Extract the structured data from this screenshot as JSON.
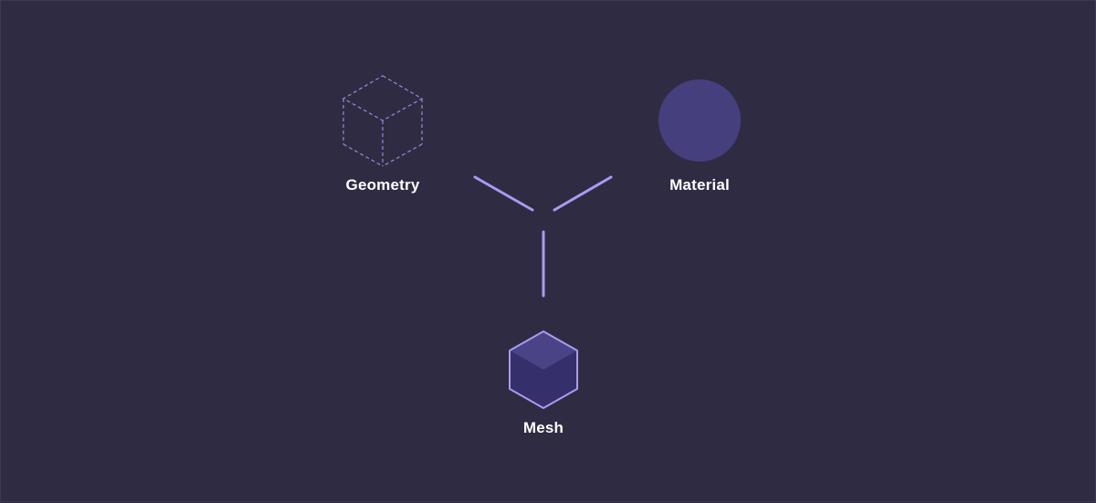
{
  "nodes": {
    "geometry": {
      "label": "Geometry"
    },
    "material": {
      "label": "Material"
    },
    "mesh": {
      "label": "Mesh"
    }
  },
  "colors": {
    "background": "#2f2b43",
    "accent": "#a89cf0",
    "material_fill": "#463f7e",
    "mesh_top": "#4a4386",
    "mesh_side": "#352f6b",
    "label": "#ffffff"
  },
  "icons": {
    "geometry": "wireframe-cube-icon",
    "material": "circle-icon",
    "mesh": "solid-cube-icon"
  }
}
